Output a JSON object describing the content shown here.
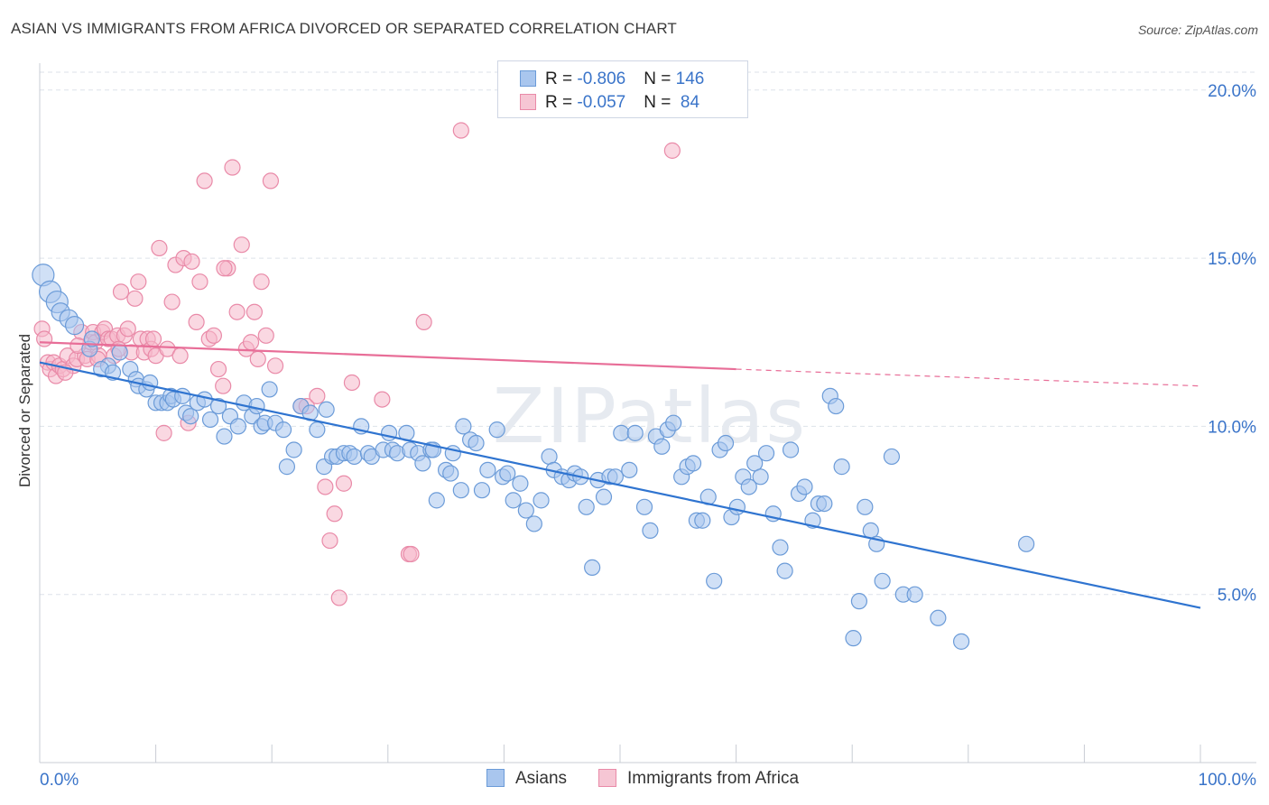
{
  "title": "ASIAN VS IMMIGRANTS FROM AFRICA DIVORCED OR SEPARATED CORRELATION CHART",
  "source": "Source: ZipAtlas.com",
  "watermark": "ZIPatlas",
  "legend": {
    "rows": [
      {
        "r_label": "R = ",
        "r_value": "-0.806",
        "n_label": "N = ",
        "n_value": "146"
      },
      {
        "r_label": "R = ",
        "r_value": "-0.057",
        "n_label": "N = ",
        "n_value": " 84"
      }
    ]
  },
  "bottom_legend": [
    "Asians",
    "Immigrants from Africa"
  ],
  "colors": {
    "blue_fill": "#a9c6ee",
    "blue_stroke": "#6b9bd8",
    "blue_line": "#2f74d0",
    "pink_fill": "#f6b8cb",
    "pink_stroke": "#e98aa8",
    "pink_line": "#e86e98",
    "axis_label": "#3a74c9",
    "grid": "#dde2ea"
  },
  "chart_data": {
    "type": "scatter",
    "xlabel": "",
    "ylabel": "Divorced or Separated",
    "xlim": [
      0,
      100
    ],
    "ylim": [
      0,
      20.8
    ],
    "x_tick_labels": [
      "0.0%",
      "100.0%"
    ],
    "y_ticks": [
      5,
      10,
      15,
      20
    ],
    "y_tick_labels": [
      "5.0%",
      "10.0%",
      "15.0%",
      "20.0%"
    ],
    "grid": true,
    "series": [
      {
        "name": "Asians",
        "r": -0.806,
        "n": 146,
        "trend": {
          "x0": 0,
          "y0": 11.9,
          "x1": 100,
          "y1": 4.6
        },
        "points": [
          [
            0.3,
            14.5
          ],
          [
            0.9,
            14.0
          ],
          [
            1.5,
            13.7
          ],
          [
            1.8,
            13.4
          ],
          [
            2.5,
            13.2
          ],
          [
            3.0,
            13.0
          ],
          [
            4.3,
            12.3
          ],
          [
            4.5,
            12.6
          ],
          [
            5.9,
            11.8
          ],
          [
            5.3,
            11.7
          ],
          [
            6.3,
            11.6
          ],
          [
            6.9,
            12.2
          ],
          [
            7.8,
            11.7
          ],
          [
            8.3,
            11.4
          ],
          [
            8.5,
            11.2
          ],
          [
            9.2,
            11.1
          ],
          [
            9.5,
            11.3
          ],
          [
            10.0,
            10.7
          ],
          [
            10.5,
            10.7
          ],
          [
            11.0,
            10.7
          ],
          [
            11.3,
            10.9
          ],
          [
            11.5,
            10.8
          ],
          [
            12.3,
            10.9
          ],
          [
            12.6,
            10.4
          ],
          [
            13.0,
            10.3
          ],
          [
            13.6,
            10.7
          ],
          [
            14.2,
            10.8
          ],
          [
            14.7,
            10.2
          ],
          [
            15.4,
            10.6
          ],
          [
            15.9,
            9.7
          ],
          [
            16.4,
            10.3
          ],
          [
            17.1,
            10.0
          ],
          [
            17.6,
            10.7
          ],
          [
            18.3,
            10.3
          ],
          [
            18.7,
            10.6
          ],
          [
            19.1,
            10.0
          ],
          [
            19.4,
            10.1
          ],
          [
            19.8,
            11.1
          ],
          [
            20.3,
            10.1
          ],
          [
            21.0,
            9.9
          ],
          [
            21.3,
            8.8
          ],
          [
            21.9,
            9.3
          ],
          [
            22.5,
            10.6
          ],
          [
            23.3,
            10.4
          ],
          [
            23.9,
            9.9
          ],
          [
            24.5,
            8.8
          ],
          [
            24.7,
            10.5
          ],
          [
            25.2,
            9.1
          ],
          [
            25.6,
            9.1
          ],
          [
            26.2,
            9.2
          ],
          [
            26.7,
            9.2
          ],
          [
            27.1,
            9.1
          ],
          [
            27.7,
            10.0
          ],
          [
            28.3,
            9.2
          ],
          [
            28.6,
            9.1
          ],
          [
            29.6,
            9.3
          ],
          [
            30.1,
            9.8
          ],
          [
            30.4,
            9.3
          ],
          [
            30.8,
            9.2
          ],
          [
            31.6,
            9.8
          ],
          [
            31.9,
            9.3
          ],
          [
            32.6,
            9.2
          ],
          [
            33.0,
            8.9
          ],
          [
            33.7,
            9.3
          ],
          [
            33.9,
            9.3
          ],
          [
            34.2,
            7.8
          ],
          [
            35.0,
            8.7
          ],
          [
            35.4,
            8.6
          ],
          [
            35.6,
            9.2
          ],
          [
            36.3,
            8.1
          ],
          [
            36.5,
            10.0
          ],
          [
            37.1,
            9.6
          ],
          [
            37.6,
            9.5
          ],
          [
            38.1,
            8.1
          ],
          [
            38.6,
            8.7
          ],
          [
            39.4,
            9.9
          ],
          [
            39.9,
            8.5
          ],
          [
            40.3,
            8.6
          ],
          [
            40.8,
            7.8
          ],
          [
            41.4,
            8.3
          ],
          [
            41.9,
            7.5
          ],
          [
            42.6,
            7.1
          ],
          [
            43.2,
            7.8
          ],
          [
            43.9,
            9.1
          ],
          [
            44.3,
            8.7
          ],
          [
            45.0,
            8.5
          ],
          [
            45.6,
            8.4
          ],
          [
            46.1,
            8.6
          ],
          [
            46.6,
            8.5
          ],
          [
            47.1,
            7.6
          ],
          [
            47.6,
            5.8
          ],
          [
            48.1,
            8.4
          ],
          [
            48.6,
            7.9
          ],
          [
            49.1,
            8.5
          ],
          [
            49.6,
            8.5
          ],
          [
            50.1,
            9.8
          ],
          [
            50.8,
            8.7
          ],
          [
            51.3,
            9.8
          ],
          [
            52.1,
            7.6
          ],
          [
            52.6,
            6.9
          ],
          [
            53.1,
            9.7
          ],
          [
            53.6,
            9.4
          ],
          [
            54.1,
            9.9
          ],
          [
            54.6,
            10.1
          ],
          [
            55.3,
            8.5
          ],
          [
            55.8,
            8.8
          ],
          [
            56.3,
            8.9
          ],
          [
            56.6,
            7.2
          ],
          [
            57.1,
            7.2
          ],
          [
            57.6,
            7.9
          ],
          [
            58.1,
            5.4
          ],
          [
            58.6,
            9.3
          ],
          [
            59.1,
            9.5
          ],
          [
            59.6,
            7.3
          ],
          [
            60.1,
            7.6
          ],
          [
            60.6,
            8.5
          ],
          [
            61.1,
            8.2
          ],
          [
            61.6,
            8.9
          ],
          [
            62.1,
            8.5
          ],
          [
            62.6,
            9.2
          ],
          [
            63.2,
            7.4
          ],
          [
            63.8,
            6.4
          ],
          [
            64.2,
            5.7
          ],
          [
            64.7,
            9.3
          ],
          [
            65.4,
            8.0
          ],
          [
            65.9,
            8.2
          ],
          [
            66.6,
            7.2
          ],
          [
            67.1,
            7.7
          ],
          [
            67.6,
            7.7
          ],
          [
            68.1,
            10.9
          ],
          [
            68.6,
            10.6
          ],
          [
            69.1,
            8.8
          ],
          [
            70.1,
            3.7
          ],
          [
            70.6,
            4.8
          ],
          [
            71.1,
            7.6
          ],
          [
            71.6,
            6.9
          ],
          [
            72.1,
            6.5
          ],
          [
            72.6,
            5.4
          ],
          [
            73.4,
            9.1
          ],
          [
            74.4,
            5.0
          ],
          [
            75.4,
            5.0
          ],
          [
            77.4,
            4.3
          ],
          [
            79.4,
            3.6
          ],
          [
            85.0,
            6.5
          ]
        ]
      },
      {
        "name": "Immigrants from Africa",
        "r": -0.057,
        "n": 84,
        "trend": {
          "x0": 0,
          "y0": 12.5,
          "x1": 60,
          "y1": 11.7
        },
        "trend_dashed": {
          "x0": 60,
          "y0": 11.7,
          "x1": 100,
          "y1": 11.2
        },
        "points": [
          [
            0.2,
            12.9
          ],
          [
            0.4,
            12.6
          ],
          [
            0.7,
            11.9
          ],
          [
            0.9,
            11.7
          ],
          [
            1.2,
            11.9
          ],
          [
            1.4,
            11.5
          ],
          [
            1.7,
            11.8
          ],
          [
            2.0,
            11.7
          ],
          [
            2.4,
            12.1
          ],
          [
            2.9,
            11.8
          ],
          [
            3.2,
            12.0
          ],
          [
            3.6,
            12.8
          ],
          [
            3.9,
            12.1
          ],
          [
            4.1,
            12.0
          ],
          [
            4.4,
            12.5
          ],
          [
            4.6,
            12.8
          ],
          [
            4.8,
            12.5
          ],
          [
            5.1,
            12.1
          ],
          [
            5.4,
            12.8
          ],
          [
            5.6,
            12.9
          ],
          [
            5.9,
            12.6
          ],
          [
            6.2,
            12.6
          ],
          [
            6.4,
            12.1
          ],
          [
            6.7,
            12.7
          ],
          [
            7.0,
            14.0
          ],
          [
            7.3,
            12.7
          ],
          [
            7.6,
            12.9
          ],
          [
            7.9,
            12.2
          ],
          [
            8.2,
            13.8
          ],
          [
            8.5,
            14.3
          ],
          [
            8.7,
            12.6
          ],
          [
            9.0,
            12.2
          ],
          [
            9.3,
            12.6
          ],
          [
            9.6,
            12.3
          ],
          [
            10.0,
            12.1
          ],
          [
            10.3,
            15.3
          ],
          [
            10.7,
            9.8
          ],
          [
            11.0,
            12.3
          ],
          [
            11.4,
            13.7
          ],
          [
            11.7,
            14.8
          ],
          [
            12.1,
            12.1
          ],
          [
            12.4,
            15.0
          ],
          [
            12.8,
            10.1
          ],
          [
            13.1,
            14.9
          ],
          [
            13.5,
            13.1
          ],
          [
            13.8,
            14.3
          ],
          [
            14.2,
            17.3
          ],
          [
            14.6,
            12.6
          ],
          [
            15.0,
            12.7
          ],
          [
            15.4,
            11.7
          ],
          [
            15.8,
            11.2
          ],
          [
            16.2,
            14.7
          ],
          [
            16.6,
            17.7
          ],
          [
            17.0,
            13.4
          ],
          [
            17.4,
            15.4
          ],
          [
            17.8,
            12.3
          ],
          [
            18.2,
            12.5
          ],
          [
            18.5,
            13.4
          ],
          [
            19.1,
            14.3
          ],
          [
            19.5,
            12.7
          ],
          [
            19.9,
            17.3
          ],
          [
            20.3,
            11.8
          ],
          [
            22.5,
            10.6
          ],
          [
            23.0,
            10.6
          ],
          [
            23.9,
            10.9
          ],
          [
            24.6,
            8.2
          ],
          [
            25.0,
            6.6
          ],
          [
            25.4,
            7.4
          ],
          [
            25.8,
            4.9
          ],
          [
            26.2,
            8.3
          ],
          [
            26.9,
            11.3
          ],
          [
            29.5,
            10.8
          ],
          [
            31.8,
            6.2
          ],
          [
            32.0,
            6.2
          ],
          [
            33.1,
            13.1
          ],
          [
            36.3,
            18.8
          ],
          [
            54.5,
            18.2
          ],
          [
            5.0,
            12.0
          ],
          [
            3.3,
            12.4
          ],
          [
            6.8,
            12.3
          ],
          [
            9.8,
            12.6
          ],
          [
            15.9,
            14.7
          ],
          [
            18.8,
            12.0
          ],
          [
            2.2,
            11.6
          ]
        ]
      }
    ]
  }
}
